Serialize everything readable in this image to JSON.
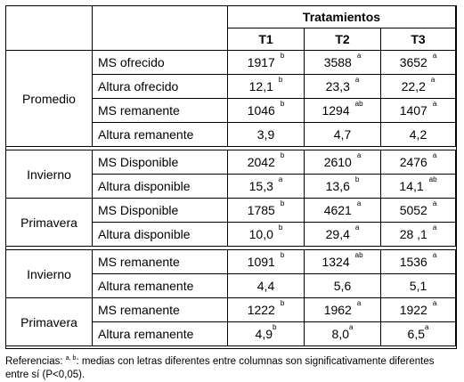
{
  "header": {
    "group": "Tratamientos",
    "cols": [
      "T1",
      "T2",
      "T3"
    ]
  },
  "sections": [
    {
      "group": "Promedio",
      "rows": [
        {
          "label": "MS ofrecido",
          "cells": [
            {
              "v": "1917",
              "s": "b"
            },
            {
              "v": "3588",
              "s": "a"
            },
            {
              "v": "3652",
              "s": "a"
            }
          ]
        },
        {
          "label": "Altura ofrecido",
          "cells": [
            {
              "v": "12,1",
              "s": "b"
            },
            {
              "v": "23,3",
              "s": "a"
            },
            {
              "v": "22,2",
              "s": "a"
            }
          ]
        },
        {
          "label": "MS remanente",
          "cells": [
            {
              "v": "1046",
              "s": "b"
            },
            {
              "v": "1294",
              "s": "ab"
            },
            {
              "v": "1407",
              "s": "a"
            }
          ]
        },
        {
          "label": "Altura remanente",
          "cells": [
            {
              "v": "3,9",
              "s": ""
            },
            {
              "v": "4,7",
              "s": ""
            },
            {
              "v": "4,2",
              "s": ""
            }
          ]
        }
      ]
    },
    {
      "group": "Invierno",
      "rows": [
        {
          "label": "MS Disponible",
          "cells": [
            {
              "v": "2042",
              "s": "b"
            },
            {
              "v": "2610",
              "s": "a"
            },
            {
              "v": "2476",
              "s": "a"
            }
          ]
        },
        {
          "label": "Altura disponible",
          "cells": [
            {
              "v": "15,3",
              "s": "a"
            },
            {
              "v": "13,6",
              "s": "b"
            },
            {
              "v": "14,1",
              "s": "ab"
            }
          ]
        }
      ]
    },
    {
      "group": "Primavera",
      "rows": [
        {
          "label": "MS Disponible",
          "cells": [
            {
              "v": "1785",
              "s": "b"
            },
            {
              "v": "4621",
              "s": "a"
            },
            {
              "v": "5052",
              "s": "a"
            }
          ]
        },
        {
          "label": "Altura disponible",
          "cells": [
            {
              "v": "10,0",
              "s": "b"
            },
            {
              "v": "29,4",
              "s": "a"
            },
            {
              "v": "28 ,1",
              "s": "a"
            }
          ]
        }
      ]
    },
    {
      "group": "Invierno",
      "rows": [
        {
          "label": "MS remanente",
          "cells": [
            {
              "v": "1091",
              "s": "b"
            },
            {
              "v": "1324",
              "s": "ab"
            },
            {
              "v": "1536",
              "s": "a"
            }
          ]
        },
        {
          "label": "Altura remanente",
          "cells": [
            {
              "v": "4,4",
              "s": ""
            },
            {
              "v": "5,6",
              "s": ""
            },
            {
              "v": "5,1",
              "s": ""
            }
          ]
        }
      ]
    },
    {
      "group": "Primavera",
      "rows": [
        {
          "label": "MS remanente",
          "cells": [
            {
              "v": "1222",
              "s": "b"
            },
            {
              "v": "1962",
              "s": "a"
            },
            {
              "v": "1922",
              "s": "a"
            }
          ]
        },
        {
          "label": "Altura remanente",
          "cells": [
            {
              "v": "4,9",
              "s": "b",
              "tight": true
            },
            {
              "v": "8,0",
              "s": "a",
              "tight": true
            },
            {
              "v": "6,5",
              "s": "a",
              "tight": true
            }
          ]
        }
      ]
    }
  ],
  "footnote": {
    "prefix": "Referencias: ",
    "sup": "a, b",
    "text": ": medias con letras diferentes entre columnas son significativamente diferentes entre sí (P<0,05)."
  }
}
